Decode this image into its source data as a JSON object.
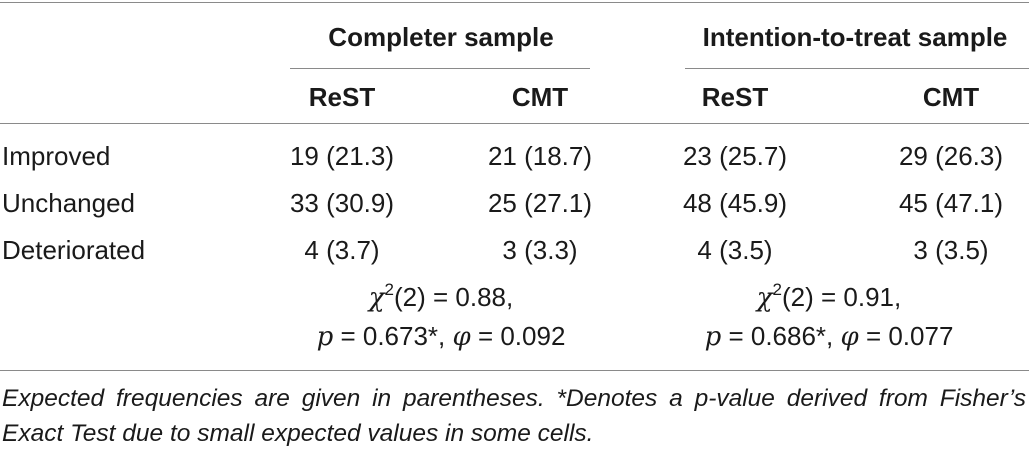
{
  "table": {
    "groups": {
      "completer": "Completer sample",
      "itt": "Intention-to-treat sample"
    },
    "columns": [
      "ReST",
      "CMT",
      "ReST",
      "CMT"
    ],
    "rows": [
      {
        "label": "Improved",
        "cells": [
          "19 (21.3)",
          "21 (18.7)",
          "23 (25.7)",
          "29 (26.3)"
        ]
      },
      {
        "label": "Unchanged",
        "cells": [
          "33 (30.9)",
          "25 (27.1)",
          "48 (45.9)",
          "45 (47.1)"
        ]
      },
      {
        "label": "Deteriorated",
        "cells": [
          "4 (3.7)",
          "3 (3.3)",
          "4 (3.5)",
          "3 (3.5)"
        ]
      }
    ],
    "stats": {
      "completer": {
        "chi_symbol": "χ",
        "chi_sup": "2",
        "chi_rest": "(2) = 0.88,",
        "p_symbol": "p",
        "p_rest": " = 0.673*, ",
        "phi_symbol": "φ",
        "phi_rest": " = 0.092"
      },
      "itt": {
        "chi_symbol": "χ",
        "chi_sup": "2",
        "chi_rest": "(2) = 0.91,",
        "p_symbol": "p",
        "p_rest": " = 0.686*, ",
        "phi_symbol": "φ",
        "phi_rest": " = 0.077"
      }
    }
  },
  "footnote": "Expected frequencies are given in parentheses. *Denotes a p-value derived from Fisher’s Exact Test due to small expected values in some cells."
}
